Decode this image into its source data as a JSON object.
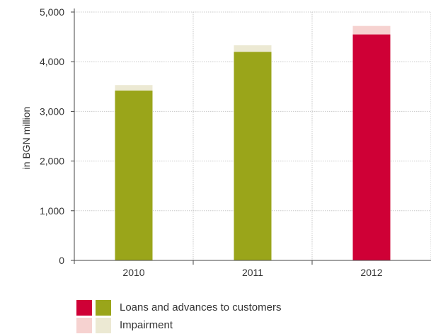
{
  "chart_data": {
    "type": "bar",
    "stacked": true,
    "categories": [
      "2010",
      "2011",
      "2012"
    ],
    "series": [
      {
        "name": "Loans and advances to customers",
        "values": [
          3420,
          4200,
          4550
        ]
      },
      {
        "name": "Impairment",
        "values": [
          110,
          130,
          170
        ]
      }
    ],
    "ylabel": "in BGN million",
    "xlabel": "",
    "ylim": [
      0,
      5000
    ],
    "yticks": [
      "0",
      "1,000",
      "2,000",
      "3,000",
      "4,000",
      "5,000"
    ],
    "grid": true,
    "legend_position": "bottom-left",
    "colors": {
      "loans_previous": "#9aa51a",
      "loans_current": "#cf0036",
      "impairment_previous": "#ece9d3",
      "impairment_current": "#f6d2d0",
      "grid": "#c8c8c8",
      "axis": "#444444"
    }
  }
}
